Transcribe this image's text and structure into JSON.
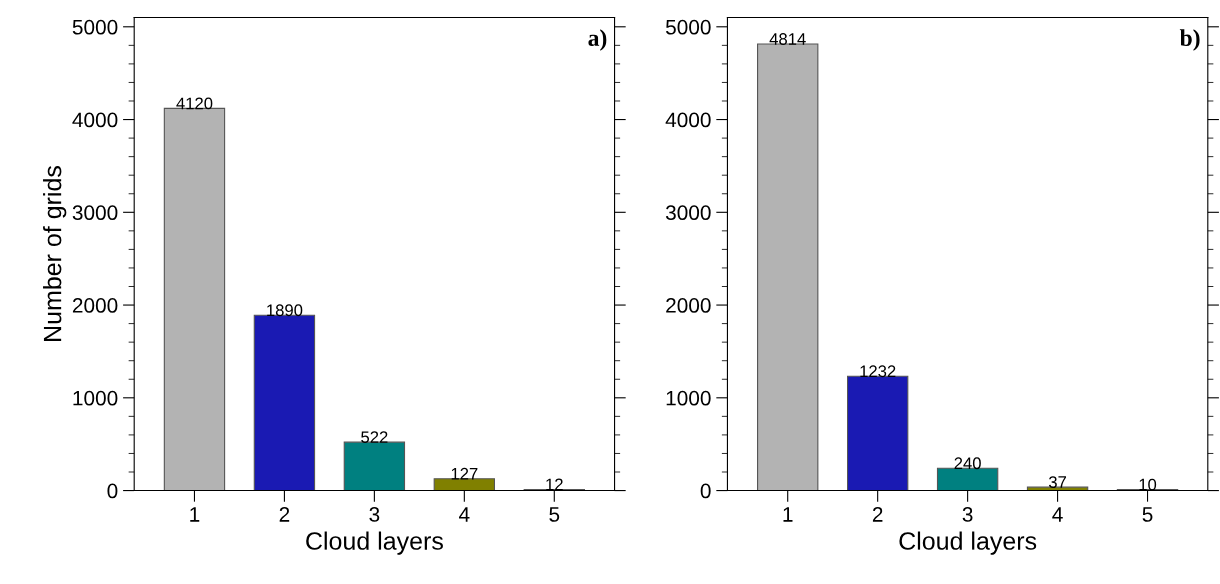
{
  "chart_data": [
    {
      "type": "bar",
      "annotations": [
        "a)"
      ],
      "xlabel": "Cloud layers",
      "ylabel": "Number of grids",
      "categories": [
        "1",
        "2",
        "3",
        "4",
        "5"
      ],
      "values": [
        4120,
        1890,
        522,
        127,
        12
      ],
      "colors": [
        "#b3b3b3",
        "#1a1ab3",
        "#008080",
        "#808000",
        "#b31a1a"
      ],
      "ylim": [
        0,
        5100
      ],
      "yticks": [
        0,
        1000,
        2000,
        3000,
        4000,
        5000
      ],
      "data_labels": true,
      "grid": false
    },
    {
      "type": "bar",
      "annotations": [
        "b)"
      ],
      "xlabel": "Cloud layers",
      "categories": [
        "1",
        "2",
        "3",
        "4",
        "5"
      ],
      "values": [
        4814,
        1232,
        240,
        37,
        10
      ],
      "colors": [
        "#b3b3b3",
        "#1a1ab3",
        "#008080",
        "#808000",
        "#b31a1a"
      ],
      "ylim": [
        0,
        5100
      ],
      "yticks": [
        0,
        1000,
        2000,
        3000,
        4000,
        5000
      ],
      "data_labels": true,
      "grid": false
    }
  ]
}
